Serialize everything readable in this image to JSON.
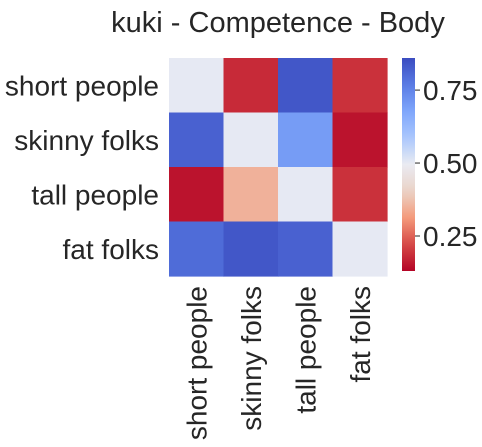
{
  "chart_data": {
    "type": "heatmap",
    "title": "kuki - Competence - Body",
    "xlabel": "",
    "ylabel": "",
    "row_labels": [
      "short people",
      "skinny folks",
      "tall people",
      "fat folks"
    ],
    "col_labels": [
      "short people",
      "skinny folks",
      "tall people",
      "fat folks"
    ],
    "values": [
      [
        0.5,
        0.18,
        0.84,
        0.19
      ],
      [
        0.82,
        0.5,
        0.7,
        0.15
      ],
      [
        0.15,
        0.35,
        0.5,
        0.19
      ],
      [
        0.8,
        0.84,
        0.82,
        0.5
      ]
    ],
    "colormap": "coolwarm_r",
    "vmin": 0.13,
    "vmax": 0.86,
    "colorbar": {
      "ticks": [
        0.25,
        0.5,
        0.75
      ],
      "tick_labels": [
        "0.25",
        "0.50",
        "0.75"
      ]
    }
  }
}
